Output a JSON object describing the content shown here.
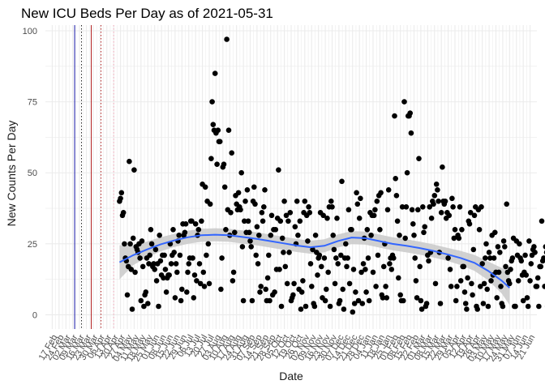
{
  "chart_data": {
    "type": "scatter",
    "title": "New ICU Beds Per Day as of 2021-05-31",
    "xlabel": "Date",
    "ylabel": "New Counts Per Day",
    "ylim": [
      -5,
      102
    ],
    "xlim": [
      "2020-02-10",
      "2021-06-28"
    ],
    "y_ticks": [
      0,
      25,
      50,
      75,
      100
    ],
    "x_ticks": [
      {
        "date": "2020-02-17",
        "label": "17 Feb"
      },
      {
        "date": "2020-02-24",
        "label": "24 Feb"
      },
      {
        "date": "2020-03-02",
        "label": "02 Mar"
      },
      {
        "date": "2020-03-09",
        "label": "09 Mar"
      },
      {
        "date": "2020-03-16",
        "label": "16 Mar"
      },
      {
        "date": "2020-03-23",
        "label": "23 Mar"
      },
      {
        "date": "2020-03-30",
        "label": "30 Mar"
      },
      {
        "date": "2020-04-06",
        "label": "06 Apr"
      },
      {
        "date": "2020-04-13",
        "label": "13 Apr"
      },
      {
        "date": "2020-04-20",
        "label": "20 Apr"
      },
      {
        "date": "2020-04-27",
        "label": "27 Apr"
      },
      {
        "date": "2020-05-04",
        "label": "04 May"
      },
      {
        "date": "2020-05-11",
        "label": "11 May"
      },
      {
        "date": "2020-05-18",
        "label": "18 May"
      },
      {
        "date": "2020-05-25",
        "label": "25 May"
      },
      {
        "date": "2020-06-01",
        "label": "01 Jun"
      },
      {
        "date": "2020-06-08",
        "label": "08 Jun"
      },
      {
        "date": "2020-06-15",
        "label": "15 Jun"
      },
      {
        "date": "2020-06-22",
        "label": "22 Jun"
      },
      {
        "date": "2020-06-29",
        "label": "29 Jun"
      },
      {
        "date": "2020-07-06",
        "label": "06 Jul"
      },
      {
        "date": "2020-07-13",
        "label": "13 Jul"
      },
      {
        "date": "2020-07-20",
        "label": "20 Jul"
      },
      {
        "date": "2020-07-27",
        "label": "27 Jul"
      },
      {
        "date": "2020-08-03",
        "label": "03 Aug"
      },
      {
        "date": "2020-08-10",
        "label": "10 Aug"
      },
      {
        "date": "2020-08-17",
        "label": "17 Aug"
      },
      {
        "date": "2020-08-24",
        "label": "24 Aug"
      },
      {
        "date": "2020-08-31",
        "label": "31 Aug"
      },
      {
        "date": "2020-09-07",
        "label": "07 Sep"
      },
      {
        "date": "2020-09-14",
        "label": "14 Sep"
      },
      {
        "date": "2020-09-21",
        "label": "21 Sep"
      },
      {
        "date": "2020-09-28",
        "label": "28 Sep"
      },
      {
        "date": "2020-10-05",
        "label": "05 Oct"
      },
      {
        "date": "2020-10-12",
        "label": "12 Oct"
      },
      {
        "date": "2020-10-19",
        "label": "19 Oct"
      },
      {
        "date": "2020-10-26",
        "label": "26 Oct"
      },
      {
        "date": "2020-11-02",
        "label": "02 Nov"
      },
      {
        "date": "2020-11-09",
        "label": "09 Nov"
      },
      {
        "date": "2020-11-16",
        "label": "16 Nov"
      },
      {
        "date": "2020-11-23",
        "label": "23 Nov"
      },
      {
        "date": "2020-11-30",
        "label": "30 Nov"
      },
      {
        "date": "2020-12-07",
        "label": "07 Dec"
      },
      {
        "date": "2020-12-14",
        "label": "14 Dec"
      },
      {
        "date": "2020-12-21",
        "label": "21 Dec"
      },
      {
        "date": "2020-12-28",
        "label": "28 Dec"
      },
      {
        "date": "2021-01-04",
        "label": "04 Jan"
      },
      {
        "date": "2021-01-11",
        "label": "11 Jan"
      },
      {
        "date": "2021-01-18",
        "label": "18 Jan"
      },
      {
        "date": "2021-01-25",
        "label": "25 Jan"
      },
      {
        "date": "2021-02-01",
        "label": "01 Feb"
      },
      {
        "date": "2021-02-08",
        "label": "08 Feb"
      },
      {
        "date": "2021-02-15",
        "label": "15 Feb"
      },
      {
        "date": "2021-02-22",
        "label": "22 Feb"
      },
      {
        "date": "2021-03-01",
        "label": "01 Mar"
      },
      {
        "date": "2021-03-08",
        "label": "08 Mar"
      },
      {
        "date": "2021-03-15",
        "label": "15 Mar"
      },
      {
        "date": "2021-03-22",
        "label": "22 Mar"
      },
      {
        "date": "2021-03-29",
        "label": "29 Mar"
      },
      {
        "date": "2021-04-05",
        "label": "05 Apr"
      },
      {
        "date": "2021-04-12",
        "label": "12 Apr"
      },
      {
        "date": "2021-04-19",
        "label": "19 Apr"
      },
      {
        "date": "2021-04-26",
        "label": "26 Apr"
      },
      {
        "date": "2021-05-03",
        "label": "03 May"
      },
      {
        "date": "2021-05-10",
        "label": "10 May"
      },
      {
        "date": "2021-05-17",
        "label": "17 May"
      },
      {
        "date": "2021-05-24",
        "label": "24 May"
      },
      {
        "date": "2021-05-31",
        "label": "31 May"
      },
      {
        "date": "2021-06-07",
        "label": "07 Jun"
      },
      {
        "date": "2021-06-14",
        "label": "14 Jun"
      },
      {
        "date": "2021-06-21",
        "label": "21 Jun"
      }
    ],
    "reference_lines": [
      {
        "date": "2020-03-11",
        "style": "solid",
        "color": "#1a1aa8"
      },
      {
        "date": "2020-03-18",
        "style": "dotted",
        "color": "#222222"
      },
      {
        "date": "2020-03-28",
        "style": "solid",
        "color": "#b22222"
      },
      {
        "date": "2020-04-07",
        "style": "dotted",
        "color": "#b22222"
      },
      {
        "date": "2020-04-20",
        "style": "dotted",
        "color": "#f4a6b8"
      }
    ],
    "point_series": {
      "x_start": "2020-04-26",
      "y": [
        40,
        41,
        43,
        35,
        36,
        25,
        20,
        19,
        7,
        17,
        54,
        25,
        16,
        2,
        27,
        51,
        15,
        24,
        23,
        22,
        25,
        20,
        5,
        26,
        17,
        3,
        7,
        8,
        20,
        4,
        18,
        21,
        30,
        25,
        17,
        18,
        16,
        23,
        12,
        18,
        3,
        28,
        19,
        14,
        21,
        13,
        21,
        16,
        8,
        13,
        14,
        14,
        25,
        18,
        21,
        30,
        22,
        6,
        18,
        15,
        26,
        28,
        21,
        5,
        9,
        32,
        28,
        29,
        32,
        8,
        15,
        18,
        20,
        33,
        33,
        20,
        6,
        14,
        32,
        12,
        28,
        30,
        18,
        11,
        33,
        46,
        15,
        10,
        45,
        21,
        40,
        25,
        11,
        39,
        55,
        75,
        67,
        65,
        85,
        64,
        53,
        65,
        61,
        61,
        9,
        20,
        52,
        53,
        45,
        30,
        97,
        37,
        65,
        28,
        36,
        57,
        12,
        15,
        29,
        42,
        39,
        37,
        43,
        38,
        37,
        50,
        24,
        5,
        33,
        40,
        29,
        44,
        33,
        29,
        26,
        24,
        5,
        40,
        45,
        39,
        21,
        31,
        18,
        28,
        8,
        10,
        36,
        33,
        38,
        44,
        9,
        5,
        13,
        21,
        5,
        28,
        35,
        7,
        30,
        8,
        30,
        16,
        34,
        51,
        16,
        33,
        3,
        27,
        22,
        40,
        17,
        35,
        11,
        33,
        22,
        36,
        5,
        6,
        7,
        11,
        31,
        25,
        40,
        28,
        9,
        33,
        2,
        8,
        12,
        36,
        40,
        3,
        35,
        26,
        38,
        36,
        18,
        10,
        23,
        4,
        3,
        28,
        22,
        14,
        20,
        21,
        36,
        17,
        6,
        35,
        20,
        5,
        9,
        34,
        15,
        38,
        3,
        40,
        38,
        28,
        23,
        11,
        20,
        34,
        18,
        4,
        5,
        21,
        47,
        9,
        2,
        20,
        25,
        17,
        20,
        37,
        11,
        30,
        30,
        1,
        16,
        4,
        8,
        43,
        39,
        5,
        34,
        41,
        15,
        4,
        18,
        27,
        16,
        8,
        30,
        20,
        5,
        36,
        28,
        35,
        15,
        35,
        37,
        10,
        40,
        21,
        42,
        30,
        43,
        7,
        6,
        17,
        25,
        10,
        6,
        37,
        44,
        18,
        20,
        16,
        21,
        20,
        70,
        48,
        42,
        33,
        13,
        28,
        7,
        5,
        38,
        5,
        75,
        27,
        38,
        50,
        70,
        70,
        71,
        64,
        37,
        32,
        28,
        20,
        12,
        6,
        37,
        55,
        17,
        5,
        2,
        38,
        29,
        31,
        3,
        4,
        21,
        19,
        38,
        22,
        34,
        40,
        39,
        42,
        11,
        46,
        44,
        40,
        22,
        4,
        36,
        52,
        40,
        39,
        40,
        34,
        36,
        20,
        35,
        16,
        10,
        41,
        38,
        27,
        30,
        5,
        10,
        28,
        27,
        38,
        12,
        30,
        17,
        17,
        8,
        4,
        2,
        13,
        33,
        32,
        36,
        11,
        7,
        23,
        35,
        38,
        3,
        2,
        37,
        30,
        10,
        38,
        18,
        4,
        11,
        20,
        25,
        9,
        3,
        22,
        20,
        12,
        28,
        14,
        20,
        29,
        15,
        6,
        24,
        15,
        22,
        10,
        4,
        3,
        26,
        24,
        17,
        39,
        15,
        12,
        11,
        16,
        19,
        20,
        27,
        3,
        3,
        26,
        21,
        12,
        25,
        20,
        19,
        14,
        5,
        15,
        21,
        14,
        6,
        3,
        26,
        12,
        18,
        21,
        23,
        24,
        22,
        10,
        10,
        13,
        3,
        17,
        17,
        33,
        19,
        20,
        10,
        24,
        22,
        3,
        13,
        7,
        2,
        14,
        25,
        22,
        18,
        16,
        8,
        8,
        28,
        3,
        10,
        28,
        22,
        23,
        3,
        5,
        2,
        27,
        20,
        24,
        5,
        14,
        17,
        28,
        8,
        10,
        2,
        18,
        16,
        3,
        25,
        4,
        26,
        19,
        11,
        32,
        16,
        24,
        5,
        24,
        8,
        2,
        0,
        16,
        13
      ]
    },
    "smooth_fit": {
      "x": [
        "2020-04-26",
        "2020-05-10",
        "2020-05-24",
        "2020-06-07",
        "2020-06-21",
        "2020-07-05",
        "2020-07-19",
        "2020-08-02",
        "2020-08-16",
        "2020-08-30",
        "2020-09-13",
        "2020-09-27",
        "2020-10-11",
        "2020-10-25",
        "2020-11-08",
        "2020-11-22",
        "2020-12-06",
        "2020-12-20",
        "2021-01-03",
        "2021-01-17",
        "2021-01-31",
        "2021-02-14",
        "2021-02-28",
        "2021-03-14",
        "2021-03-28",
        "2021-04-11",
        "2021-04-25",
        "2021-05-09",
        "2021-05-23",
        "2021-05-31"
      ],
      "y": [
        18.5,
        21,
        23,
        24.8,
        26.2,
        27.3,
        28,
        28.2,
        28,
        27.4,
        26.8,
        26,
        25.2,
        24.4,
        23.8,
        24.3,
        26,
        27.2,
        27,
        26,
        25,
        24.3,
        23.5,
        22.5,
        21.3,
        20,
        18.3,
        15.5,
        12,
        9.5
      ],
      "band_half_width": [
        6,
        3.5,
        2.8,
        2.5,
        2.3,
        2.3,
        2.3,
        2.3,
        2.3,
        2.3,
        2.3,
        2.3,
        2.3,
        2.3,
        2.3,
        2.3,
        2.3,
        2.3,
        2.3,
        2.3,
        2.3,
        2.3,
        2.3,
        2.3,
        2.3,
        2.5,
        2.8,
        3.3,
        4.5,
        6
      ]
    },
    "colors": {
      "points": "#000000",
      "smooth_line": "#3366ff",
      "confidence_band": "#c9c9c9",
      "grid": "#ebebeb"
    },
    "grid": true,
    "legend": "none"
  }
}
